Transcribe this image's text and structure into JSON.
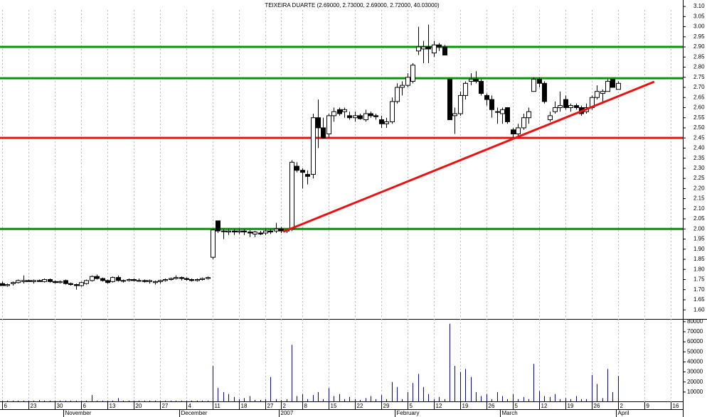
{
  "chart_data": {
    "type": "candlestick",
    "title": "TEIXEIRA DUARTE (2.69000, 2.73000, 2.69000, 2.72000, 40.03000)",
    "categories": [
      "6",
      null,
      null,
      null,
      null,
      "23",
      null,
      null,
      null,
      null,
      "30",
      null,
      null,
      null,
      null,
      "6",
      null,
      null,
      null,
      null,
      "13",
      null,
      null,
      null,
      null,
      "20",
      null,
      null,
      null,
      null,
      "27",
      null,
      null,
      null,
      null,
      "4",
      null,
      null,
      null,
      null,
      "11",
      null,
      null,
      null,
      null,
      "18",
      null,
      null,
      null,
      null,
      "27",
      null,
      null,
      "2",
      null,
      null,
      null,
      "8",
      null,
      null,
      null,
      null,
      "15",
      null,
      null,
      null,
      null,
      "22",
      null,
      null,
      null,
      null,
      "29",
      null,
      null,
      null,
      null,
      "5",
      null,
      null,
      null,
      null,
      "12",
      null,
      null,
      null,
      null,
      "19",
      null,
      null,
      null,
      null,
      "26",
      null,
      null,
      null,
      null,
      "5",
      null,
      null,
      null,
      null,
      "12",
      null,
      null,
      null,
      null,
      "19",
      null,
      null,
      null,
      null,
      "26",
      null,
      null,
      null,
      null,
      "2",
      null,
      null,
      null,
      null,
      "9",
      null,
      null,
      null,
      null,
      "16"
    ],
    "month_labels": [
      null,
      null,
      null,
      null,
      null,
      null,
      null,
      null,
      null,
      null,
      null,
      null,
      "November",
      null,
      null,
      null,
      null,
      null,
      null,
      null,
      null,
      null,
      null,
      null,
      null,
      null,
      null,
      null,
      null,
      null,
      null,
      null,
      null,
      null,
      "December",
      null,
      null,
      null,
      null,
      null,
      null,
      null,
      null,
      null,
      null,
      null,
      null,
      null,
      null,
      null,
      null,
      null,
      null,
      "2007",
      null,
      null,
      null,
      null,
      null,
      null,
      null,
      null,
      null,
      null,
      null,
      null,
      null,
      null,
      null,
      null,
      null,
      null,
      null,
      null,
      null,
      "February",
      null,
      null,
      null,
      null,
      null,
      null,
      null,
      null,
      null,
      null,
      null,
      null,
      null,
      null,
      null,
      null,
      null,
      null,
      null,
      "March",
      null,
      null,
      null,
      null,
      null,
      null,
      null,
      null,
      null,
      null,
      null,
      null,
      null,
      null,
      null,
      null,
      null,
      null,
      null,
      null,
      null,
      "April",
      null,
      null,
      null,
      null,
      null,
      null,
      null,
      null,
      null,
      null
    ],
    "open": [
      1.73,
      1.72,
      1.73,
      1.735,
      1.74,
      1.745,
      1.74,
      1.745,
      1.74,
      1.75,
      1.74,
      1.735,
      1.745,
      1.73,
      1.725,
      1.72,
      1.73,
      1.745,
      1.765,
      1.755,
      1.745,
      1.74,
      1.76,
      1.745,
      1.745,
      1.75,
      1.745,
      1.745,
      1.74,
      1.735,
      1.74,
      1.745,
      1.75,
      1.755,
      1.76,
      1.755,
      1.75,
      1.745,
      1.75,
      1.755,
      1.86,
      2.04,
      1.99,
      1.985,
      1.99,
      1.985,
      1.99,
      1.985,
      1.975,
      1.98,
      1.98,
      1.99,
      1.99,
      2.0,
      1.99,
      2.0,
      2.31,
      2.29,
      2.27,
      2.27,
      2.55,
      2.5,
      2.47,
      2.56,
      2.59,
      2.58,
      2.56,
      2.55,
      2.56,
      2.54,
      2.57,
      2.56,
      2.54,
      2.52,
      2.53,
      2.63,
      2.7,
      2.71,
      2.73,
      2.88,
      2.89,
      2.9,
      2.87,
      2.91,
      2.9,
      2.74,
      2.56,
      2.57,
      2.66,
      2.73,
      2.74,
      2.73,
      2.66,
      2.64,
      2.58,
      2.57,
      2.6,
      2.49,
      2.47,
      2.5,
      2.55,
      2.68,
      2.74,
      2.72,
      2.54,
      2.58,
      2.6,
      2.64,
      2.6,
      2.61,
      2.6,
      2.58,
      2.6,
      2.65,
      2.67,
      2.68,
      2.74,
      2.69,
      null,
      null,
      null,
      null,
      null,
      null,
      null,
      null,
      null,
      null
    ],
    "high": [
      1.74,
      1.73,
      1.74,
      1.75,
      1.77,
      1.75,
      1.75,
      1.75,
      1.755,
      1.755,
      1.745,
      1.745,
      1.75,
      1.735,
      1.73,
      1.74,
      1.75,
      1.77,
      1.775,
      1.76,
      1.75,
      1.765,
      1.77,
      1.75,
      1.755,
      1.755,
      1.755,
      1.75,
      1.75,
      1.745,
      1.75,
      1.755,
      1.76,
      1.77,
      1.765,
      1.76,
      1.755,
      1.755,
      1.76,
      1.765,
      2.0,
      2.04,
      2.0,
      2.0,
      2.0,
      2.0,
      2.0,
      1.995,
      1.99,
      1.99,
      2.0,
      2.0,
      2.03,
      2.01,
      2.0,
      2.34,
      2.33,
      2.3,
      2.29,
      2.57,
      2.64,
      2.55,
      2.57,
      2.6,
      2.6,
      2.6,
      2.58,
      2.58,
      2.57,
      2.59,
      2.58,
      2.57,
      2.56,
      2.55,
      2.65,
      2.72,
      2.73,
      2.77,
      2.82,
      3.0,
      2.93,
      3.01,
      2.93,
      2.92,
      2.91,
      2.74,
      2.6,
      2.68,
      2.73,
      2.77,
      2.78,
      2.74,
      2.67,
      2.66,
      2.6,
      2.6,
      2.6,
      2.5,
      2.52,
      2.57,
      2.6,
      2.75,
      2.75,
      2.73,
      2.58,
      2.63,
      2.68,
      2.66,
      2.62,
      2.62,
      2.61,
      2.62,
      2.66,
      2.71,
      2.69,
      2.74,
      2.74,
      2.73,
      null,
      null,
      null,
      null,
      null,
      null,
      null,
      null,
      null,
      null
    ],
    "low": [
      1.72,
      1.715,
      1.72,
      1.73,
      1.73,
      1.74,
      1.73,
      1.74,
      1.735,
      1.735,
      1.73,
      1.73,
      1.725,
      1.72,
      1.7,
      1.715,
      1.725,
      1.74,
      1.75,
      1.74,
      1.73,
      1.735,
      1.74,
      1.735,
      1.74,
      1.74,
      1.74,
      1.735,
      1.73,
      1.725,
      1.73,
      1.74,
      1.745,
      1.75,
      1.745,
      1.745,
      1.74,
      1.74,
      1.745,
      1.75,
      1.85,
      1.98,
      1.95,
      1.97,
      1.97,
      1.975,
      1.97,
      1.96,
      1.96,
      1.97,
      1.97,
      1.975,
      1.98,
      1.98,
      1.98,
      1.99,
      2.28,
      2.2,
      2.22,
      2.25,
      2.4,
      2.45,
      2.45,
      2.53,
      2.56,
      2.55,
      2.54,
      2.53,
      2.54,
      2.53,
      2.55,
      2.54,
      2.5,
      2.5,
      2.52,
      2.62,
      2.66,
      2.7,
      2.72,
      2.86,
      2.82,
      2.82,
      2.85,
      2.88,
      2.86,
      2.54,
      2.47,
      2.56,
      2.64,
      2.71,
      2.72,
      2.66,
      2.61,
      2.55,
      2.52,
      2.52,
      2.52,
      2.45,
      2.45,
      2.49,
      2.52,
      2.68,
      2.7,
      2.62,
      2.53,
      2.57,
      2.58,
      2.59,
      2.58,
      2.59,
      2.56,
      2.57,
      2.59,
      2.64,
      2.63,
      2.68,
      2.7,
      2.69,
      null,
      null,
      null,
      null,
      null,
      null,
      null,
      null,
      null,
      null
    ],
    "close": [
      1.72,
      1.725,
      1.735,
      1.745,
      1.745,
      1.74,
      1.745,
      1.74,
      1.75,
      1.74,
      1.735,
      1.74,
      1.73,
      1.725,
      1.72,
      1.735,
      1.745,
      1.765,
      1.755,
      1.745,
      1.735,
      1.76,
      1.745,
      1.745,
      1.75,
      1.745,
      1.745,
      1.74,
      1.745,
      1.74,
      1.745,
      1.75,
      1.755,
      1.76,
      1.755,
      1.75,
      1.745,
      1.75,
      1.755,
      1.76,
      1.995,
      1.99,
      1.99,
      1.99,
      1.985,
      1.99,
      1.985,
      1.98,
      1.985,
      1.975,
      1.99,
      1.985,
      2.0,
      1.99,
      1.995,
      2.33,
      2.29,
      2.28,
      2.26,
      2.55,
      2.5,
      2.45,
      2.56,
      2.58,
      2.57,
      2.59,
      2.55,
      2.56,
      2.545,
      2.57,
      2.56,
      2.555,
      2.52,
      2.53,
      2.63,
      2.7,
      2.71,
      2.75,
      2.81,
      2.9,
      2.9,
      2.89,
      2.91,
      2.9,
      2.86,
      2.54,
      2.57,
      2.66,
      2.72,
      2.74,
      2.73,
      2.67,
      2.64,
      2.59,
      2.58,
      2.59,
      2.53,
      2.47,
      2.5,
      2.55,
      2.58,
      2.74,
      2.72,
      2.63,
      2.56,
      2.6,
      2.61,
      2.6,
      2.61,
      2.6,
      2.57,
      2.6,
      2.65,
      2.68,
      2.68,
      2.73,
      2.7,
      2.72,
      null,
      null,
      null,
      null,
      null,
      null,
      null,
      null,
      null,
      null
    ],
    "volume": [
      1500,
      1500,
      1500,
      1500,
      1500,
      1500,
      1500,
      2000,
      1500,
      1500,
      1500,
      1500,
      1500,
      1500,
      1500,
      1500,
      1500,
      7000,
      1500,
      1500,
      1500,
      1500,
      4000,
      1500,
      1500,
      1500,
      1500,
      1500,
      1500,
      1500,
      1500,
      1500,
      1500,
      1500,
      1500,
      1500,
      1500,
      1500,
      1500,
      1500,
      36000,
      14000,
      10000,
      8000,
      5000,
      3000,
      4000,
      6000,
      2000,
      2000,
      3000,
      25000,
      3000,
      2000,
      3000,
      57000,
      6000,
      8000,
      3000,
      7000,
      10000,
      3000,
      14000,
      6000,
      8000,
      3000,
      5000,
      3000,
      2000,
      4000,
      6000,
      3000,
      7000,
      3000,
      20000,
      15000,
      3000,
      10000,
      19000,
      28000,
      15000,
      8000,
      3000,
      5000,
      3000,
      78000,
      36000,
      30000,
      33000,
      25000,
      10000,
      6000,
      8000,
      3000,
      10000,
      6000,
      3000,
      8000,
      3000,
      5000,
      3000,
      38000,
      11000,
      6000,
      5000,
      8000,
      3000,
      4000,
      3000,
      6000,
      3000,
      3000,
      27000,
      18000,
      4000,
      33000,
      10000,
      26000,
      null,
      null,
      null,
      null,
      null,
      null,
      null,
      null,
      null,
      null
    ],
    "up_color": "#ffffff",
    "down_color": "#000000",
    "volume_color": "#0000cc",
    "ylim": [
      1.555,
      3.132
    ],
    "yticks": [
      {
        "value": 1.6,
        "label": "1.60"
      },
      1.65,
      {
        "value": 1.7,
        "label": "1.70"
      },
      1.75,
      {
        "value": 1.8,
        "label": "1.80"
      },
      1.85,
      {
        "value": 1.9,
        "label": "1.90"
      },
      1.95,
      {
        "value": 2,
        "label": "2.00"
      },
      2.05,
      {
        "value": 2.1,
        "label": "2.10"
      },
      2.15,
      {
        "value": 2.2,
        "label": "2.20"
      },
      2.25,
      {
        "value": 2.3,
        "label": "2.30"
      },
      2.35,
      {
        "value": 2.4,
        "label": "2.40"
      },
      2.45,
      {
        "value": 2.5,
        "label": "2.50"
      },
      2.55,
      {
        "value": 2.6,
        "label": "2.60"
      },
      2.65,
      {
        "value": 2.7,
        "label": "2.70"
      },
      2.75,
      {
        "value": 2.8,
        "label": "2.80"
      },
      2.85,
      {
        "value": 2.9,
        "label": "2.90"
      },
      2.95,
      {
        "value": 3,
        "label": "3.00"
      },
      3.05,
      {
        "value": 3.1,
        "label": "3.10"
      }
    ],
    "volume_ylim": [
      0,
      82000
    ],
    "volume_yticks": [
      10000,
      20000,
      30000,
      40000,
      50000,
      60000,
      70000,
      80000
    ],
    "grid": true,
    "levels": [
      {
        "value": 2.9,
        "color": "#009900"
      },
      {
        "value": 2.745,
        "color": "#009900"
      },
      {
        "value": 2.45,
        "color": "#ee1111"
      },
      {
        "value": 2.0,
        "color": "#009900"
      }
    ],
    "trendline": {
      "x": [
        53.4,
        123.9
      ],
      "y": [
        1.986,
        2.728
      ],
      "color": "#ee1111"
    }
  }
}
